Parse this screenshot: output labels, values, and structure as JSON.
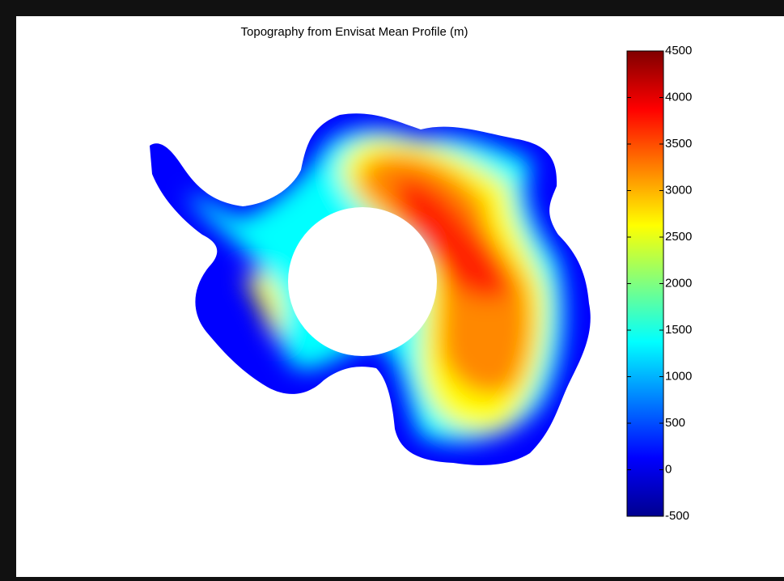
{
  "chart_data": {
    "type": "heatmap",
    "title": "Topography from Envisat Mean Profile (m)",
    "colorbar": {
      "lim": [
        -500,
        4500
      ],
      "ticks": [
        -500,
        0,
        500,
        1000,
        1500,
        2000,
        2500,
        3000,
        3500,
        4000,
        4500
      ]
    }
  }
}
